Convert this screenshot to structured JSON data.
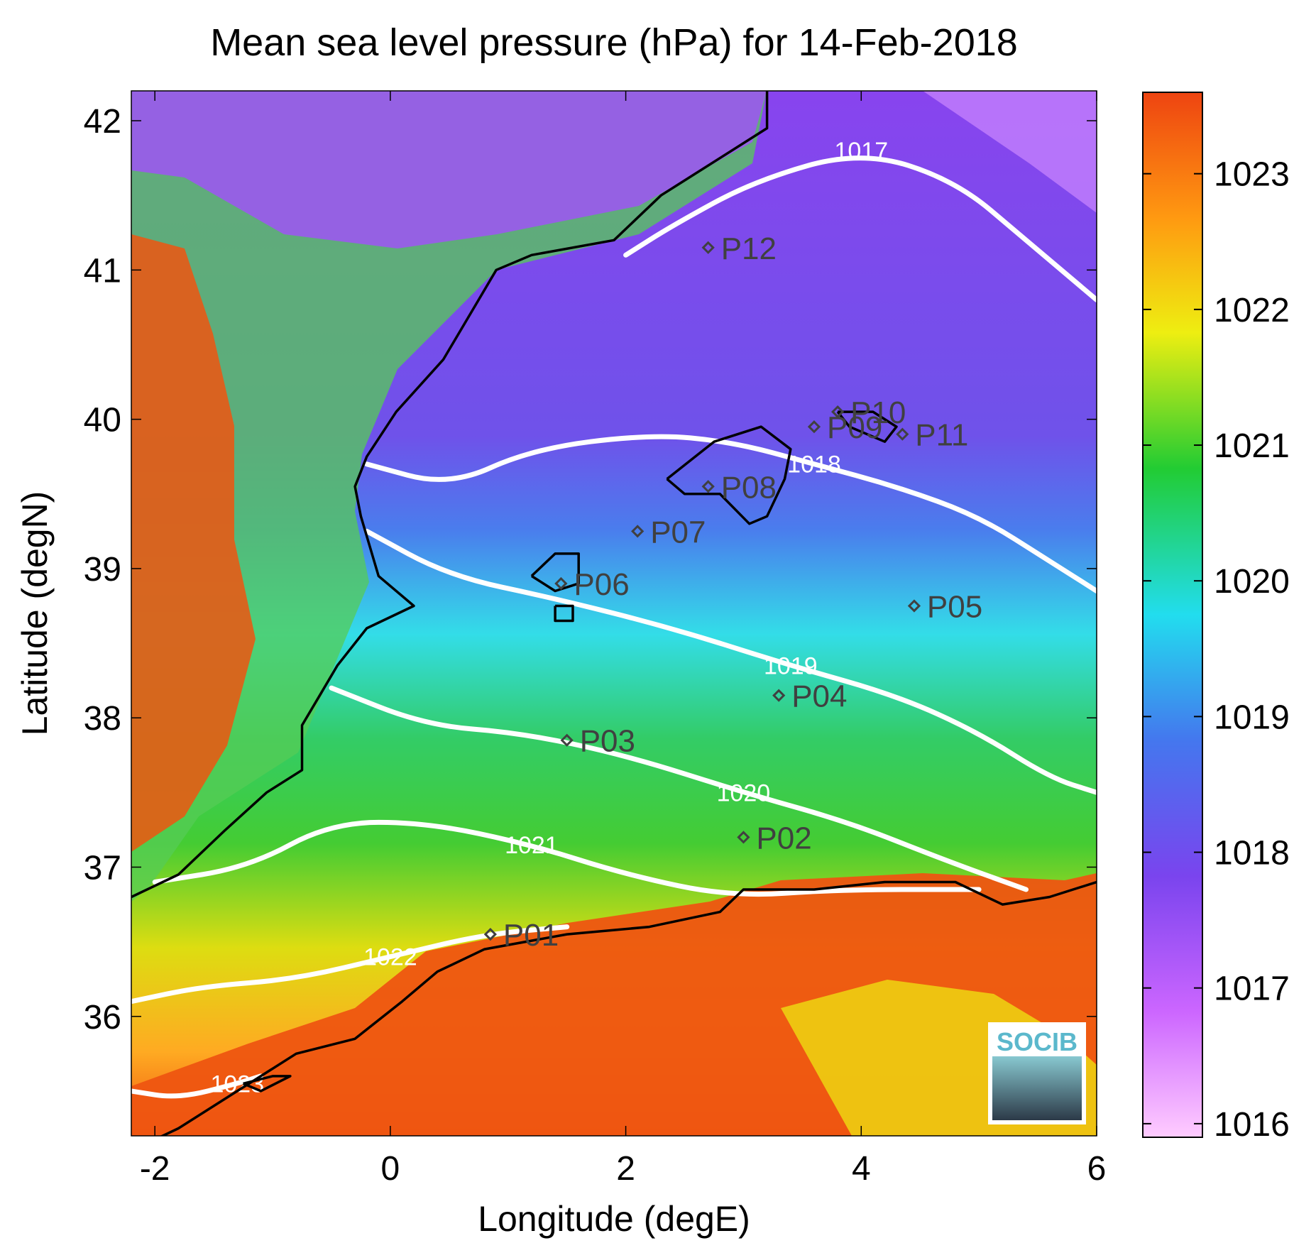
{
  "title": "Mean sea level pressure (hPa) for 14-Feb-2018",
  "xlabel": "Longitude (degE)",
  "ylabel": "Latitude (degN)",
  "logo_text": "SOCIB",
  "colors": {
    "contour": "#ffffff",
    "coast": "#000000",
    "station": "#404040",
    "colormap": [
      "#ffccff",
      "#cc66ff",
      "#7a44ee",
      "#4477ee",
      "#22ddee",
      "#22cc33",
      "#eeee11",
      "#ff9911",
      "#ee4411"
    ]
  },
  "chart_data": {
    "type": "heatmap",
    "title": "Mean sea level pressure (hPa) for 14-Feb-2018",
    "xlabel": "Longitude (degE)",
    "ylabel": "Latitude (degN)",
    "xlim": [
      -2.2,
      6.0
    ],
    "ylim": [
      35.2,
      42.2
    ],
    "xticks": [
      -2,
      0,
      2,
      4,
      6
    ],
    "yticks": [
      36,
      37,
      38,
      39,
      40,
      41,
      42
    ],
    "colorbar": {
      "min": 1015.9,
      "max": 1023.6,
      "ticks": [
        1016,
        1017,
        1018,
        1019,
        1020,
        1021,
        1022,
        1023
      ]
    },
    "stations": [
      {
        "name": "P01",
        "lon": 0.85,
        "lat": 36.55
      },
      {
        "name": "P02",
        "lon": 3.0,
        "lat": 37.2
      },
      {
        "name": "P03",
        "lon": 1.5,
        "lat": 37.85
      },
      {
        "name": "P04",
        "lon": 3.3,
        "lat": 38.15
      },
      {
        "name": "P05",
        "lon": 4.45,
        "lat": 38.75
      },
      {
        "name": "P06",
        "lon": 1.45,
        "lat": 38.9
      },
      {
        "name": "P07",
        "lon": 2.1,
        "lat": 39.25
      },
      {
        "name": "P08",
        "lon": 2.7,
        "lat": 39.55
      },
      {
        "name": "P09",
        "lon": 3.6,
        "lat": 39.95
      },
      {
        "name": "P10",
        "lon": 3.8,
        "lat": 40.05
      },
      {
        "name": "P11",
        "lon": 4.35,
        "lat": 39.9
      },
      {
        "name": "P12",
        "lon": 2.7,
        "lat": 41.15
      }
    ],
    "contours": [
      {
        "level": "1017",
        "points": [
          [
            2.0,
            41.1
          ],
          [
            2.4,
            41.3
          ],
          [
            3.1,
            41.6
          ],
          [
            4.0,
            41.8
          ],
          [
            4.8,
            41.6
          ],
          [
            5.4,
            41.2
          ],
          [
            6.0,
            40.8
          ]
        ]
      },
      {
        "level": "1018",
        "points": [
          [
            -0.2,
            39.7
          ],
          [
            0.5,
            39.55
          ],
          [
            1.2,
            39.8
          ],
          [
            2.2,
            39.9
          ],
          [
            2.9,
            39.85
          ],
          [
            3.6,
            39.7
          ],
          [
            4.3,
            39.55
          ],
          [
            5.0,
            39.35
          ],
          [
            5.6,
            39.05
          ],
          [
            6.0,
            38.85
          ]
        ]
      },
      {
        "level": "1019",
        "points": [
          [
            -0.2,
            39.25
          ],
          [
            0.5,
            38.95
          ],
          [
            1.4,
            38.8
          ],
          [
            2.4,
            38.6
          ],
          [
            3.4,
            38.35
          ],
          [
            4.3,
            38.15
          ],
          [
            5.0,
            37.9
          ],
          [
            5.6,
            37.6
          ],
          [
            6.0,
            37.5
          ]
        ]
      },
      {
        "level": "1020",
        "points": [
          [
            -0.5,
            38.2
          ],
          [
            0.3,
            37.95
          ],
          [
            1.1,
            37.9
          ],
          [
            2.0,
            37.75
          ],
          [
            3.0,
            37.5
          ],
          [
            3.9,
            37.3
          ],
          [
            4.7,
            37.05
          ],
          [
            5.4,
            36.85
          ]
        ]
      },
      {
        "level": "1021",
        "points": [
          [
            -2.0,
            36.9
          ],
          [
            -1.2,
            37.0
          ],
          [
            -0.5,
            37.3
          ],
          [
            0.3,
            37.3
          ],
          [
            1.2,
            37.15
          ],
          [
            2.0,
            36.95
          ],
          [
            2.9,
            36.8
          ],
          [
            3.8,
            36.85
          ],
          [
            5.0,
            36.85
          ]
        ]
      },
      {
        "level": "1022",
        "points": [
          [
            -2.2,
            36.1
          ],
          [
            -1.6,
            36.2
          ],
          [
            -0.8,
            36.25
          ],
          [
            0.0,
            36.4
          ],
          [
            0.8,
            36.55
          ],
          [
            1.5,
            36.6
          ]
        ]
      },
      {
        "level": "1023",
        "points": [
          [
            -2.2,
            35.5
          ],
          [
            -1.8,
            35.45
          ],
          [
            -1.3,
            35.55
          ],
          [
            -1.1,
            35.6
          ]
        ]
      }
    ],
    "coastlines": [
      [
        [
          -2.2,
          36.8
        ],
        [
          -1.8,
          36.95
        ],
        [
          -1.4,
          37.25
        ],
        [
          -1.05,
          37.5
        ],
        [
          -0.75,
          37.65
        ],
        [
          -0.75,
          37.95
        ],
        [
          -0.6,
          38.15
        ],
        [
          -0.45,
          38.35
        ],
        [
          -0.2,
          38.6
        ],
        [
          0.2,
          38.75
        ],
        [
          -0.1,
          38.95
        ],
        [
          -0.25,
          39.35
        ],
        [
          -0.3,
          39.55
        ],
        [
          -0.2,
          39.75
        ],
        [
          0.05,
          40.05
        ],
        [
          0.45,
          40.4
        ],
        [
          0.75,
          40.8
        ],
        [
          0.9,
          41.0
        ],
        [
          1.2,
          41.1
        ],
        [
          1.9,
          41.2
        ],
        [
          2.3,
          41.5
        ],
        [
          3.2,
          41.95
        ],
        [
          3.2,
          42.2
        ]
      ],
      [
        [
          -2.2,
          35.1
        ],
        [
          -1.8,
          35.25
        ],
        [
          -1.3,
          35.5
        ],
        [
          -0.8,
          35.75
        ],
        [
          -0.3,
          35.85
        ],
        [
          0.1,
          36.1
        ],
        [
          0.4,
          36.3
        ],
        [
          0.8,
          36.45
        ],
        [
          1.5,
          36.55
        ],
        [
          2.2,
          36.6
        ],
        [
          2.8,
          36.7
        ],
        [
          3.0,
          36.85
        ],
        [
          3.6,
          36.85
        ],
        [
          4.2,
          36.9
        ],
        [
          4.8,
          36.9
        ],
        [
          5.2,
          36.75
        ],
        [
          5.6,
          36.8
        ],
        [
          6.0,
          36.9
        ]
      ],
      [
        [
          2.35,
          39.6
        ],
        [
          2.75,
          39.85
        ],
        [
          3.15,
          39.95
        ],
        [
          3.4,
          39.8
        ],
        [
          3.35,
          39.6
        ],
        [
          3.2,
          39.35
        ],
        [
          3.05,
          39.3
        ],
        [
          2.8,
          39.5
        ],
        [
          2.5,
          39.5
        ],
        [
          2.35,
          39.6
        ]
      ],
      [
        [
          3.8,
          40.05
        ],
        [
          4.1,
          40.05
        ],
        [
          4.3,
          39.95
        ],
        [
          4.2,
          39.85
        ],
        [
          3.9,
          39.95
        ],
        [
          3.8,
          40.05
        ]
      ],
      [
        [
          1.2,
          38.95
        ],
        [
          1.4,
          39.1
        ],
        [
          1.6,
          39.1
        ],
        [
          1.6,
          38.9
        ],
        [
          1.4,
          38.85
        ],
        [
          1.2,
          38.95
        ]
      ],
      [
        [
          1.4,
          38.75
        ],
        [
          1.55,
          38.75
        ],
        [
          1.55,
          38.65
        ],
        [
          1.4,
          38.65
        ],
        [
          1.4,
          38.75
        ]
      ],
      [
        [
          -1.25,
          35.55
        ],
        [
          -1.0,
          35.6
        ],
        [
          -0.85,
          35.6
        ],
        [
          -1.1,
          35.5
        ],
        [
          -1.25,
          35.55
        ]
      ]
    ]
  }
}
